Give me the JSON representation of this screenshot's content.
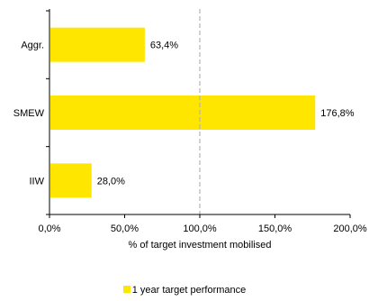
{
  "chart_data": {
    "type": "bar",
    "orientation": "horizontal",
    "categories": [
      "Aggr.",
      "SMEW",
      "IIW"
    ],
    "series": [
      {
        "name": "1 year target performance",
        "values": [
          63.4,
          176.8,
          28.0
        ]
      }
    ],
    "data_labels": [
      "63,4%",
      "176,8%",
      "28,0%"
    ],
    "xlabel": "% of target investment mobilised",
    "ylabel": "",
    "xlim": [
      0,
      200
    ],
    "x_ticks": [
      0,
      50,
      100,
      150,
      200
    ],
    "x_tick_labels": [
      "0,0%",
      "50,0%",
      "100,0%",
      "150,0%",
      "200,0%"
    ],
    "reference_line": {
      "value": 100,
      "style": "dashed",
      "color": "#b3b3b3"
    },
    "grid": false,
    "legend_position": "bottom-center",
    "colors": {
      "bar": "#ffe600",
      "axis": "#000000"
    }
  }
}
